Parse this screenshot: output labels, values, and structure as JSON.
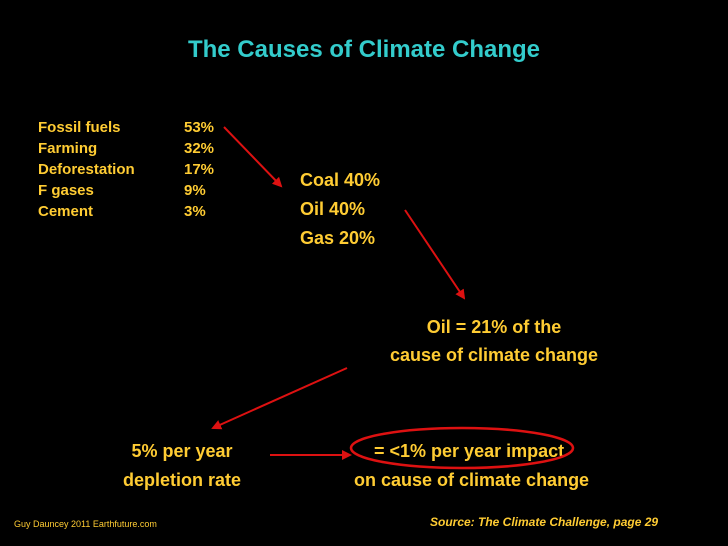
{
  "title": "The Causes of Climate Change",
  "causes": [
    {
      "name": "Fossil fuels",
      "percent": "53%"
    },
    {
      "name": "Farming",
      "percent": "32%"
    },
    {
      "name": "Deforestation",
      "percent": "17%"
    },
    {
      "name": "F gases",
      "percent": "9%"
    },
    {
      "name": "Cement",
      "percent": "3%"
    }
  ],
  "fossil_breakdown": [
    "Coal 40%",
    "Oil 40%",
    "Gas 20%"
  ],
  "oil_cause": {
    "line1": "Oil = 21% of the",
    "line2": "cause of climate change"
  },
  "depletion": {
    "line1": "5% per year",
    "line2": "depletion rate"
  },
  "impact": {
    "line1": "= <1% per year impact",
    "line2": "on cause of climate change"
  },
  "credit": "Guy Dauncey 2011 Earthfuture.com",
  "source": "Source: The Climate Challenge, page 29",
  "colors": {
    "background": "#000000",
    "title": "#33cccc",
    "text": "#ffcc33",
    "arrow": "#dd1111"
  }
}
